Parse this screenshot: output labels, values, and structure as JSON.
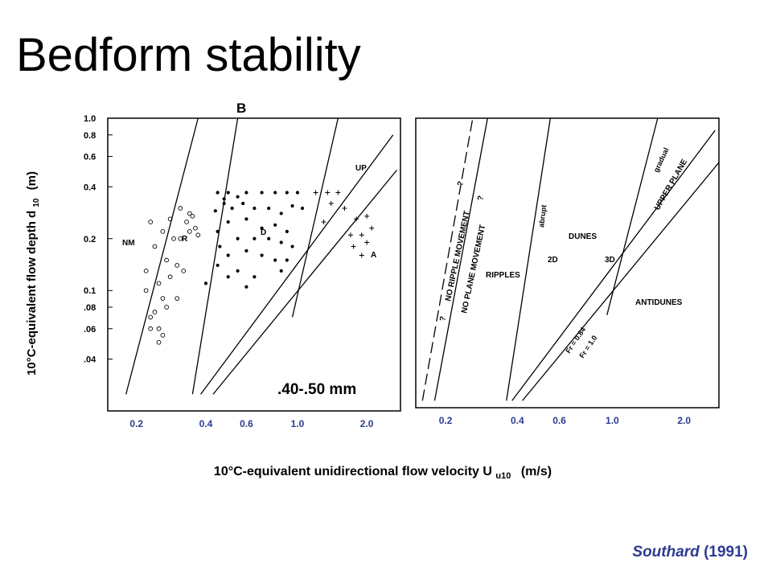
{
  "slide": {
    "title": "Bedform stability",
    "citation": {
      "author": "Southard",
      "year": "(1991)"
    },
    "accent_color": "#2c3b8f"
  },
  "chart_data": [
    {
      "type": "scatter",
      "panel_letter": "B",
      "grain_size_label": ".40-.50 mm",
      "xlabel": "10°C-equivalent unidirectional flow velocity U",
      "xlabel_subscript": "u10",
      "xlabel_units": "(m/s)",
      "ylabel": "10°C-equivalent flow depth d",
      "ylabel_subscript": "10",
      "ylabel_units": "(m)",
      "x_scale": "log",
      "y_scale": "log",
      "xlim": [
        0.15,
        2.8
      ],
      "ylim": [
        0.02,
        1.0
      ],
      "x_ticks": [
        "0.2",
        "0.4",
        "0.6",
        "1.0",
        "2.0"
      ],
      "y_ticks": [
        "1.0",
        "0.8",
        "0.6",
        "0.4",
        "0.2",
        "0.1",
        ".08",
        ".06",
        ".04"
      ],
      "region_labels": [
        "NM",
        "R",
        "D",
        "UP",
        "A"
      ],
      "boundaries": [
        {
          "points": [
            [
              0.18,
              0.025
            ],
            [
              0.37,
              1.0
            ]
          ]
        },
        {
          "points": [
            [
              0.35,
              0.025
            ],
            [
              0.55,
              1.0
            ]
          ]
        },
        {
          "points": [
            [
              0.38,
              0.025
            ],
            [
              2.6,
              0.8
            ]
          ]
        },
        {
          "points": [
            [
              0.43,
              0.025
            ],
            [
              2.7,
              0.5
            ]
          ]
        },
        {
          "points": [
            [
              0.95,
              0.07
            ],
            [
              1.5,
              1.0
            ]
          ]
        }
      ],
      "series": [
        {
          "name": "NM",
          "marker": "circle",
          "points": [
            [
              0.22,
              0.13
            ],
            [
              0.23,
              0.25
            ],
            [
              0.24,
              0.18
            ],
            [
              0.25,
              0.11
            ],
            [
              0.26,
              0.09
            ],
            [
              0.23,
              0.07
            ],
            [
              0.24,
              0.075
            ],
            [
              0.25,
              0.06
            ],
            [
              0.26,
              0.055
            ],
            [
              0.27,
              0.08
            ],
            [
              0.28,
              0.12
            ],
            [
              0.27,
              0.15
            ],
            [
              0.3,
              0.14
            ],
            [
              0.29,
              0.2
            ],
            [
              0.3,
              0.09
            ],
            [
              0.31,
              0.3
            ],
            [
              0.33,
              0.25
            ],
            [
              0.32,
              0.13
            ],
            [
              0.34,
              0.28
            ],
            [
              0.35,
              0.27
            ],
            [
              0.36,
              0.23
            ],
            [
              0.37,
              0.21
            ],
            [
              0.22,
              0.1
            ],
            [
              0.23,
              0.06
            ],
            [
              0.25,
              0.05
            ]
          ]
        },
        {
          "name": "R",
          "marker": "circle",
          "points": [
            [
              0.26,
              0.22
            ],
            [
              0.28,
              0.26
            ],
            [
              0.31,
              0.2
            ],
            [
              0.34,
              0.22
            ]
          ]
        },
        {
          "name": "D",
          "marker": "dot",
          "points": [
            [
              0.45,
              0.37
            ],
            [
              0.5,
              0.37
            ],
            [
              0.55,
              0.35
            ],
            [
              0.6,
              0.37
            ],
            [
              0.7,
              0.37
            ],
            [
              0.8,
              0.37
            ],
            [
              0.9,
              0.37
            ],
            [
              1.0,
              0.37
            ],
            [
              0.48,
              0.32
            ],
            [
              0.52,
              0.3
            ],
            [
              0.58,
              0.32
            ],
            [
              0.65,
              0.3
            ],
            [
              0.75,
              0.3
            ],
            [
              0.85,
              0.28
            ],
            [
              0.95,
              0.31
            ],
            [
              1.05,
              0.3
            ],
            [
              0.5,
              0.25
            ],
            [
              0.6,
              0.26
            ],
            [
              0.7,
              0.23
            ],
            [
              0.8,
              0.24
            ],
            [
              0.9,
              0.22
            ],
            [
              0.45,
              0.22
            ],
            [
              0.55,
              0.2
            ],
            [
              0.65,
              0.2
            ],
            [
              0.75,
              0.2
            ],
            [
              0.85,
              0.19
            ],
            [
              0.95,
              0.18
            ],
            [
              0.5,
              0.16
            ],
            [
              0.6,
              0.17
            ],
            [
              0.7,
              0.16
            ],
            [
              0.8,
              0.15
            ],
            [
              0.9,
              0.15
            ],
            [
              0.45,
              0.14
            ],
            [
              0.55,
              0.13
            ],
            [
              0.65,
              0.12
            ],
            [
              0.85,
              0.13
            ],
            [
              0.4,
              0.11
            ],
            [
              0.5,
              0.12
            ],
            [
              0.6,
              0.105
            ],
            [
              0.48,
              0.34
            ],
            [
              0.44,
              0.29
            ],
            [
              0.46,
              0.18
            ]
          ]
        },
        {
          "name": "UP",
          "marker": "plus",
          "points": [
            [
              1.2,
              0.37
            ],
            [
              1.35,
              0.37
            ],
            [
              1.5,
              0.37
            ],
            [
              1.4,
              0.32
            ],
            [
              1.6,
              0.3
            ],
            [
              1.8,
              0.26
            ],
            [
              2.0,
              0.27
            ],
            [
              2.1,
              0.23
            ],
            [
              1.9,
              0.21
            ],
            [
              2.0,
              0.19
            ],
            [
              1.7,
              0.21
            ],
            [
              1.9,
              0.16
            ],
            [
              1.75,
              0.18
            ],
            [
              1.3,
              0.25
            ]
          ]
        }
      ]
    },
    {
      "type": "line",
      "x_scale": "log",
      "y_scale": "log",
      "xlim": [
        0.15,
        2.8
      ],
      "ylim": [
        0.02,
        1.0
      ],
      "x_ticks": [
        "0.2",
        "0.4",
        "0.6",
        "1.0",
        "2.0"
      ],
      "region_labels": [
        "RIPPLES",
        "DUNES",
        "2D",
        "3D",
        "ANTIDUNES",
        "UPPER PLANE",
        "NO RIPPLE MOVEMENT",
        "NO PLANE MOVEMENT",
        "?",
        "?",
        "?"
      ],
      "boundary_labels": [
        "abrupt",
        "gradual",
        "Fr = 0.84",
        "Fr = 1.0"
      ],
      "boundaries": [
        {
          "style": "dashed",
          "points": [
            [
              0.16,
              0.022
            ],
            [
              0.26,
              1.0
            ]
          ]
        },
        {
          "style": "solid",
          "points": [
            [
              0.18,
              0.022
            ],
            [
              0.3,
              1.0
            ]
          ]
        },
        {
          "style": "solid",
          "points": [
            [
              0.36,
              0.022
            ],
            [
              0.55,
              1.0
            ]
          ]
        },
        {
          "style": "solid",
          "points": [
            [
              0.38,
              0.022
            ],
            [
              2.7,
              0.85
            ]
          ]
        },
        {
          "style": "solid",
          "points": [
            [
              0.42,
              0.022
            ],
            [
              2.8,
              0.55
            ]
          ]
        },
        {
          "style": "solid",
          "points": [
            [
              0.95,
              0.07
            ],
            [
              1.55,
              1.0
            ]
          ]
        }
      ]
    }
  ]
}
